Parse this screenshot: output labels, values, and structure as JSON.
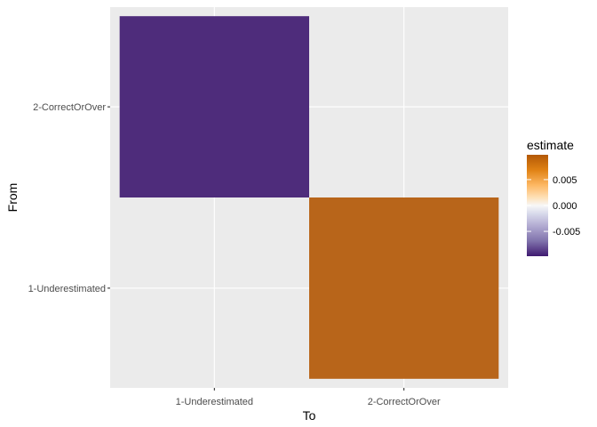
{
  "chart_data": {
    "type": "heatmap",
    "title": "",
    "xlabel": "To",
    "ylabel": "From",
    "x_categories": [
      "1-Underestimated",
      "2-CorrectOrOver"
    ],
    "y_categories": [
      "1-Underestimated",
      "2-CorrectOrOver"
    ],
    "cells": [
      {
        "x": "1-Underestimated",
        "y": "2-CorrectOrOver",
        "value": -0.009
      },
      {
        "x": "2-CorrectOrOver",
        "y": "1-Underestimated",
        "value": 0.009
      }
    ],
    "grid": true,
    "legend": {
      "title": "estimate",
      "placement": "right",
      "range": [
        -0.0098,
        0.0098
      ],
      "ticks": [
        {
          "value": 0.005,
          "label": "0.005"
        },
        {
          "value": 0.0,
          "label": "0.000"
        },
        {
          "value": -0.005,
          "label": "-0.005"
        }
      ],
      "colors": {
        "low": "#3f1a70",
        "mid": "#f6f6f6",
        "high": "#b35806"
      }
    },
    "panel_background": "#ebebeb"
  }
}
